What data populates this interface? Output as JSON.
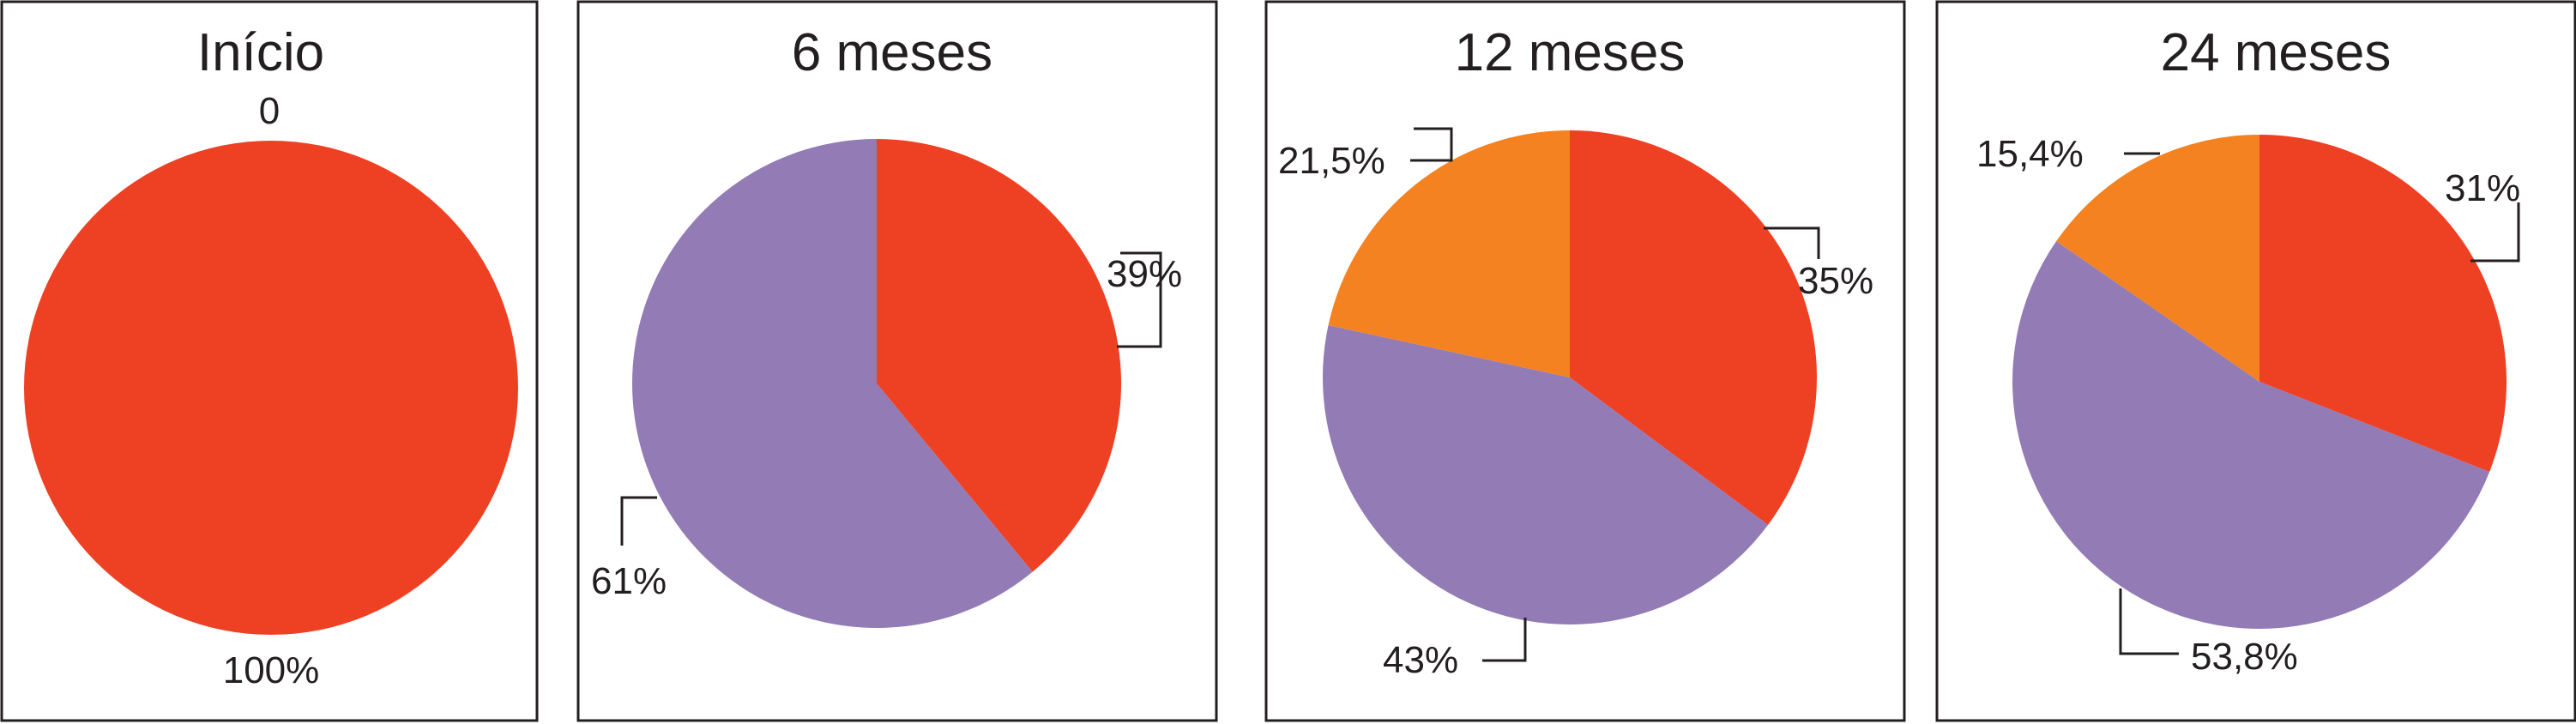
{
  "chart_data": [
    {
      "type": "pie",
      "title": "Início",
      "slices": [
        {
          "label": "100%",
          "value": 100,
          "color": "#ee4023"
        },
        {
          "label": "0",
          "value": 0,
          "color": "#f58220"
        }
      ]
    },
    {
      "type": "pie",
      "title": "6 meses",
      "slices": [
        {
          "label": "39%",
          "value": 39,
          "color": "#ee4023"
        },
        {
          "label": "61%",
          "value": 61,
          "color": "#937bb5"
        }
      ]
    },
    {
      "type": "pie",
      "title": "12 meses",
      "slices": [
        {
          "label": "35%",
          "value": 35,
          "color": "#ee4023"
        },
        {
          "label": "43%",
          "value": 43,
          "color": "#937bb5"
        },
        {
          "label": "21,5%",
          "value": 21.5,
          "color": "#f58220"
        }
      ]
    },
    {
      "type": "pie",
      "title": "24 meses",
      "slices": [
        {
          "label": "31%",
          "value": 31,
          "color": "#ee4023"
        },
        {
          "label": "53,8%",
          "value": 53.8,
          "color": "#937bb5"
        },
        {
          "label": "15,4%",
          "value": 15.4,
          "color": "#f58220"
        }
      ]
    }
  ]
}
